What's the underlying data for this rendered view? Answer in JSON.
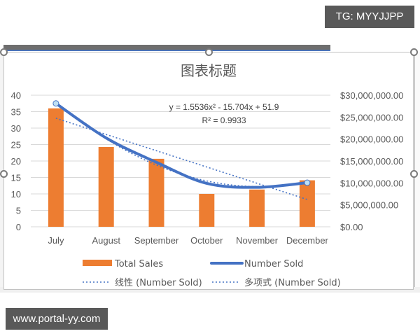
{
  "watermarks": {
    "top": "TG: MYYJJPP",
    "bottom": "www.portal-yy.com"
  },
  "colors": {
    "bar": "#ed7d31",
    "line": "#4472c4",
    "trendline": "#4472c4",
    "gridline": "#d9d9d9",
    "axis_text": "#595959"
  },
  "chart_data": {
    "type": "bar",
    "title": "图表标题",
    "categories": [
      "July",
      "August",
      "September",
      "October",
      "November",
      "December"
    ],
    "series": [
      {
        "name": "Total Sales",
        "type": "bar",
        "axis": "right",
        "values": [
          27000000,
          18200000,
          15500000,
          7500000,
          8500000,
          10600000
        ]
      },
      {
        "name": "Number Sold",
        "type": "line",
        "axis": "left",
        "values": [
          37.5,
          27,
          19.6,
          13.2,
          12,
          13.4
        ]
      }
    ],
    "trendlines": [
      {
        "name": "线性 (Number Sold)",
        "type": "linear",
        "series": "Number Sold",
        "start": 33,
        "end": 8.3
      },
      {
        "name": "多项式 (Number Sold)",
        "type": "polynomial",
        "series": "Number Sold",
        "equation": "y = 1.5536x² - 15.704x + 51.9",
        "r_squared": "R² = 0.9933"
      }
    ],
    "left_axis": {
      "min": 0,
      "max": 40,
      "step": 5,
      "ticks": [
        "0",
        "5",
        "10",
        "15",
        "20",
        "25",
        "30",
        "35",
        "40"
      ]
    },
    "right_axis": {
      "min": 0,
      "max": 30000000,
      "step": 5000000,
      "ticks": [
        "$0.00",
        "$5,000,000.00",
        "$10,000,000.00",
        "$15,000,000.00",
        "$20,000,000.00",
        "$25,000,000.00",
        "$30,000,000.00"
      ]
    },
    "xlabel": "",
    "ylabel": "",
    "grid": true,
    "legend_position": "bottom",
    "legend": [
      "Total Sales",
      "Number Sold",
      "线性 (Number Sold)",
      "多项式 (Number Sold)"
    ]
  }
}
